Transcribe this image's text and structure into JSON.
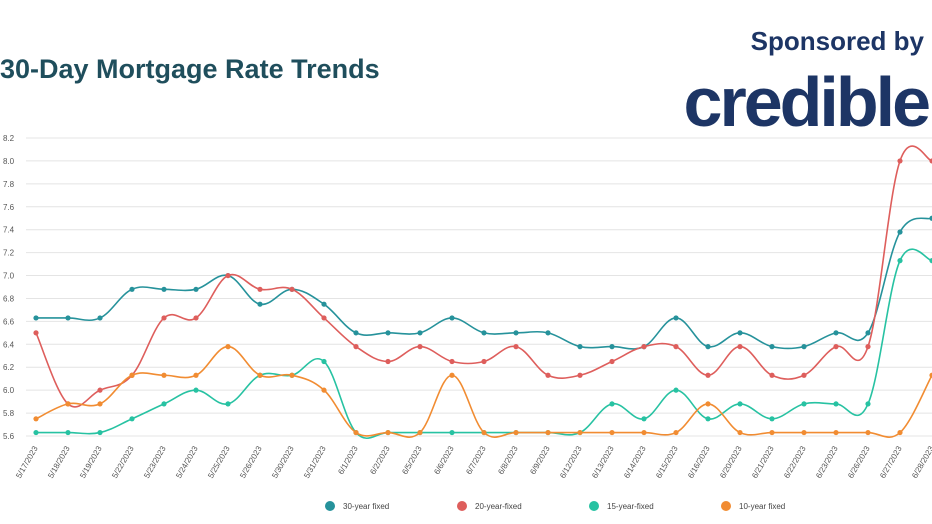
{
  "header": {
    "title": "30-Day Mortgage Rate Trends",
    "sponsor": "Sponsored by",
    "brand": "credible"
  },
  "colors": {
    "title": "#1f4e5c",
    "brand": "#1d3565",
    "grid": "#e4e4e4"
  },
  "chart_data": {
    "type": "line",
    "title": "30-Day Mortgage Rate Trends",
    "xlabel": "",
    "ylabel": "",
    "ylim": [
      5.6,
      8.2
    ],
    "yticks": [
      "8.2",
      "8.0",
      "7.8",
      "7.6",
      "7.4",
      "7.2",
      "7.0",
      "6.8",
      "6.6",
      "6.4",
      "6.2",
      "6.0",
      "5.8",
      "5.6"
    ],
    "grid": true,
    "legend_position": "bottom",
    "categories": [
      "5/17/2023",
      "5/18/2023",
      "5/19/2023",
      "5/22/2023",
      "5/23/2023",
      "5/24/2023",
      "5/25/2023",
      "5/26/2023",
      "5/30/2023",
      "5/31/2023",
      "6/1/2023",
      "6/2/2023",
      "6/5/2023",
      "6/6/2023",
      "6/7/2023",
      "6/8/2023",
      "6/9/2023",
      "6/12/2023",
      "6/13/2023",
      "6/14/2023",
      "6/15/2023",
      "6/16/2023",
      "6/20/2023",
      "6/21/2023",
      "6/22/2023",
      "6/23/2023",
      "6/26/2023",
      "6/27/2023",
      "6/28/2023"
    ],
    "series": [
      {
        "name": "30-year fixed",
        "color": "#26929b",
        "values": [
          6.63,
          6.63,
          6.63,
          6.88,
          6.88,
          6.88,
          7.0,
          6.75,
          6.88,
          6.75,
          6.5,
          6.5,
          6.5,
          6.63,
          6.5,
          6.5,
          6.5,
          6.38,
          6.38,
          6.38,
          6.63,
          6.38,
          6.5,
          6.38,
          6.38,
          6.5,
          6.5,
          7.38,
          7.5
        ]
      },
      {
        "name": "20-year-fixed",
        "color": "#de5e5c",
        "values": [
          6.5,
          5.88,
          6.0,
          6.13,
          6.63,
          6.63,
          7.0,
          6.88,
          6.88,
          6.63,
          6.38,
          6.25,
          6.38,
          6.25,
          6.25,
          6.38,
          6.13,
          6.13,
          6.25,
          6.38,
          6.38,
          6.13,
          6.38,
          6.13,
          6.13,
          6.38,
          6.38,
          8.0,
          8.0
        ]
      },
      {
        "name": "15-year-fixed",
        "color": "#27c2a2",
        "values": [
          5.63,
          5.63,
          5.63,
          5.75,
          5.88,
          6.0,
          5.88,
          6.13,
          6.13,
          6.25,
          5.63,
          5.63,
          5.63,
          5.63,
          5.63,
          5.63,
          5.63,
          5.63,
          5.88,
          5.75,
          6.0,
          5.75,
          5.88,
          5.75,
          5.88,
          5.88,
          5.88,
          7.13,
          7.13
        ]
      },
      {
        "name": "10-year fixed",
        "color": "#f18c32",
        "values": [
          5.75,
          5.88,
          5.88,
          6.13,
          6.13,
          6.13,
          6.38,
          6.13,
          6.13,
          6.0,
          5.63,
          5.63,
          5.63,
          6.13,
          5.63,
          5.63,
          5.63,
          5.63,
          5.63,
          5.63,
          5.63,
          5.88,
          5.63,
          5.63,
          5.63,
          5.63,
          5.63,
          5.63,
          6.13
        ]
      }
    ]
  }
}
